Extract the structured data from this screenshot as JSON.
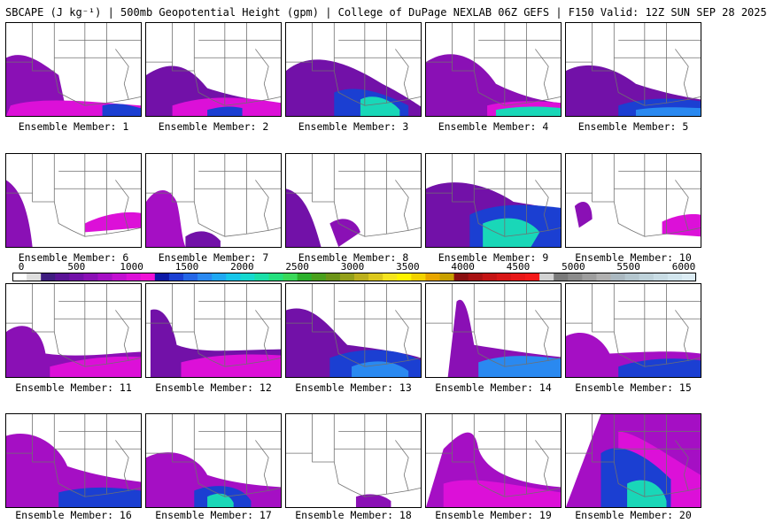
{
  "header": {
    "title": "SBCAPE (J kg⁻¹) | 500mb Geopotential Height (gpm) | College of DuPage NEXLAB 06Z GEFS | F150 Valid: 12Z SUN SEP 28 2025"
  },
  "legend": {
    "ticks": [
      "0",
      "500",
      "1000",
      "1500",
      "2000",
      "2500",
      "3000",
      "3500",
      "4000",
      "4500",
      "5000",
      "5500",
      "6000"
    ],
    "colors": [
      "#ffffff",
      "#dedede",
      "#3f1d80",
      "#5a1396",
      "#7211a8",
      "#8a10b5",
      "#a50fc4",
      "#c20fd0",
      "#dc10d8",
      "#ef12d6",
      "#0d19a6",
      "#1b3fd2",
      "#2466e6",
      "#2a89f0",
      "#1fa8f2",
      "#16c6ea",
      "#15d9cf",
      "#1adfa8",
      "#24e07e",
      "#3ad95a",
      "#2cb02c",
      "#4aa01c",
      "#6c9418",
      "#94a01a",
      "#bcb01c",
      "#dcc81c",
      "#f5e41e",
      "#fff300",
      "#f2d200",
      "#e8a600",
      "#c8a000",
      "#8a1010",
      "#a81212",
      "#c41414",
      "#d81616",
      "#e81818",
      "#f51a1a",
      "#d2d2d2",
      "#7a7a7a",
      "#8c8c8c",
      "#9e9e9e",
      "#b0b0b0",
      "#aab8c0",
      "#b4c6ce",
      "#bed2da",
      "#c8dce4",
      "#d2e6ee",
      "#dcecf4"
    ]
  },
  "members": [
    {
      "label": "Ensemble Member: 1"
    },
    {
      "label": "Ensemble Member: 2"
    },
    {
      "label": "Ensemble Member: 3"
    },
    {
      "label": "Ensemble Member: 4"
    },
    {
      "label": "Ensemble Member: 5"
    },
    {
      "label": "Ensemble Member: 6"
    },
    {
      "label": "Ensemble Member: 7"
    },
    {
      "label": "Ensemble Member: 8"
    },
    {
      "label": "Ensemble Member: 9"
    },
    {
      "label": "Ensemble Member: 10"
    },
    {
      "label": "Ensemble Member: 11"
    },
    {
      "label": "Ensemble Member: 12"
    },
    {
      "label": "Ensemble Member: 13"
    },
    {
      "label": "Ensemble Member: 14"
    },
    {
      "label": "Ensemble Member: 15"
    },
    {
      "label": "Ensemble Member: 16"
    },
    {
      "label": "Ensemble Member: 17"
    },
    {
      "label": "Ensemble Member: 18"
    },
    {
      "label": "Ensemble Member: 19"
    },
    {
      "label": "Ensemble Member: 20"
    }
  ],
  "colors": {
    "cape_low": "#7a10b0",
    "cape_mid": "#d417d6",
    "cape_high": "#1e5be0",
    "cape_very_high": "#19d7b8",
    "map_lines": "#707070"
  }
}
